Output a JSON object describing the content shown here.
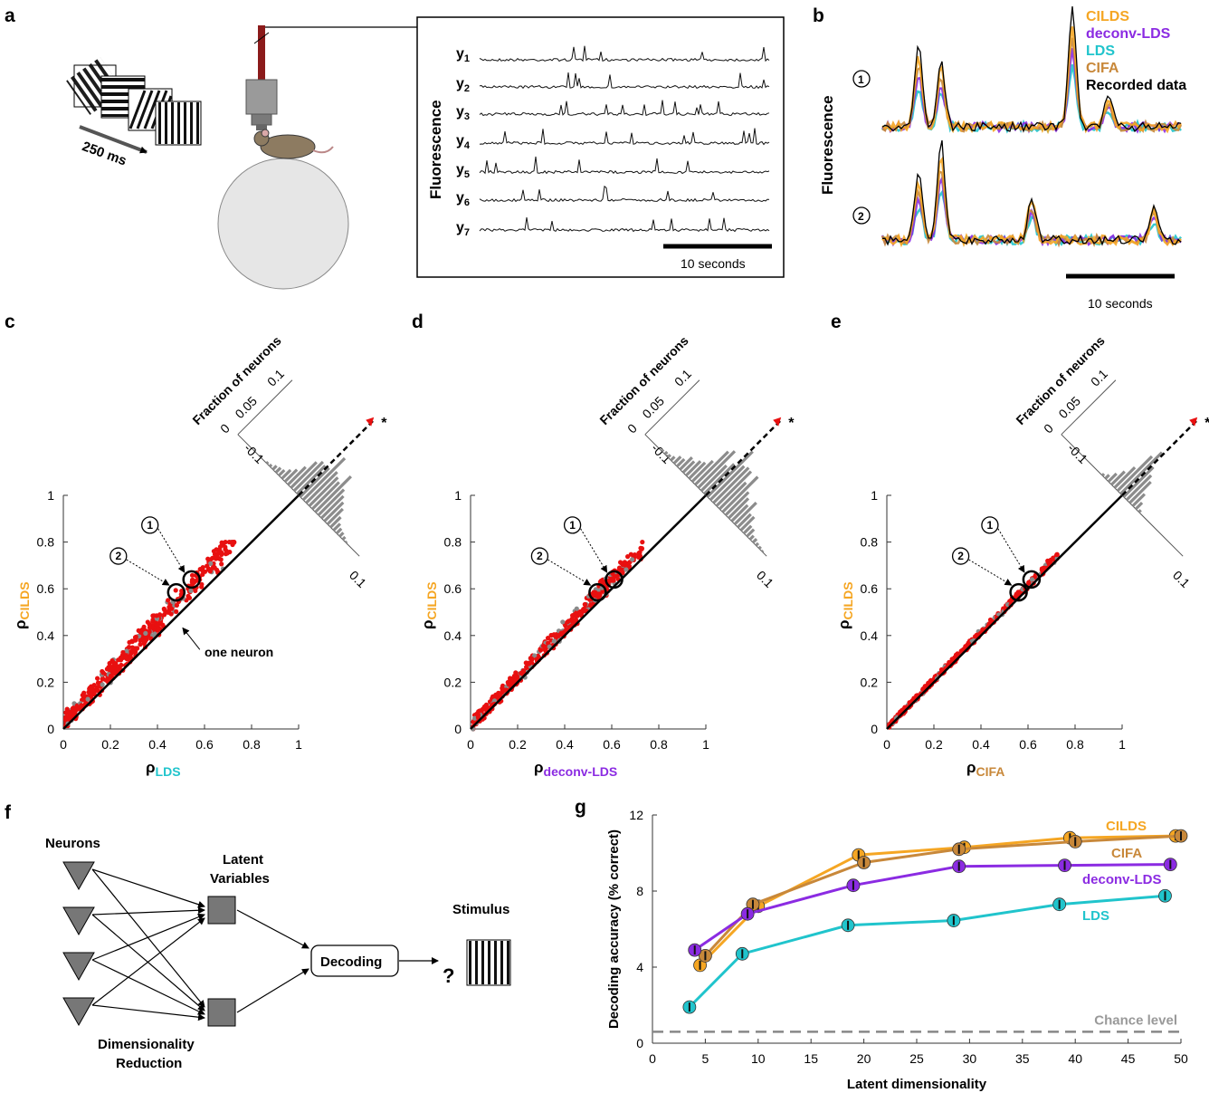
{
  "panels": [
    "a",
    "b",
    "c",
    "d",
    "e",
    "f",
    "g"
  ],
  "colors": {
    "cilds": "#f5a623",
    "deconv_lds": "#8b2be2",
    "lds": "#20c4cc",
    "cifa": "#c8883a",
    "recorded": "#000000",
    "red": "#e81010",
    "gray": "#8a8a8a"
  },
  "panel_a": {
    "time_label": "250 ms",
    "ylabel": "Fluorescence",
    "trace_labels": [
      "y1",
      "y2",
      "y3",
      "y4",
      "y5",
      "y6",
      "y7"
    ],
    "scale_label": "10 seconds"
  },
  "panel_b": {
    "ylabel": "Fluorescence",
    "legend": [
      "CILDS",
      "deconv-LDS",
      "LDS",
      "CIFA",
      "Recorded data"
    ],
    "markers": [
      "①",
      "②"
    ],
    "scale_label": "10 seconds"
  },
  "scatter_c": {
    "ylabel": "ρ",
    "ylabel_sub": "CILDS",
    "xlabel": "ρ",
    "xlabel_sub": "LDS",
    "hist_label": "Fraction of neurons",
    "annotation": "one neuron"
  },
  "scatter_d": {
    "ylabel": "ρ",
    "ylabel_sub": "CILDS",
    "xlabel": "ρ",
    "xlabel_sub": "deconv-LDS",
    "hist_label": "Fraction of neurons"
  },
  "scatter_e": {
    "ylabel": "ρ",
    "ylabel_sub": "CILDS",
    "xlabel": "ρ",
    "xlabel_sub": "CIFA",
    "hist_label": "Fraction of neurons"
  },
  "scatter_ticks": [
    "0",
    "0.2",
    "0.4",
    "0.6",
    "0.8",
    "1"
  ],
  "hist_ticks": {
    "freq": [
      "0",
      "0.05",
      "0.1"
    ],
    "diff_low": "-0.1",
    "diff_high": "0.1",
    "star": "*"
  },
  "panel_f": {
    "neurons": "Neurons",
    "latent_line1": "Latent",
    "latent_line2": "Variables",
    "decoding": "Decoding",
    "stimulus": "Stimulus",
    "question": "?",
    "dimred_line1": "Dimensionality",
    "dimred_line2": "Reduction"
  },
  "chart_data": {
    "type": "line",
    "xlabel": "Latent dimensionality",
    "ylabel": "Decoding accuracy (% correct)",
    "xlim": [
      0,
      50
    ],
    "ylim": [
      0,
      12
    ],
    "xticks": [
      0,
      5,
      10,
      15,
      20,
      25,
      30,
      35,
      40,
      45,
      50
    ],
    "yticks": [
      0,
      4,
      8,
      12
    ],
    "chance_level": 0.6,
    "chance_label": "Chance level",
    "series": [
      {
        "name": "CILDS",
        "color": "#f5a623",
        "x": [
          4.5,
          10,
          19.5,
          29.5,
          39.5,
          49.5
        ],
        "y": [
          4.1,
          7.2,
          9.9,
          10.3,
          10.8,
          10.9
        ]
      },
      {
        "name": "CIFA",
        "color": "#c8883a",
        "x": [
          5,
          9.5,
          20,
          29,
          40,
          50
        ],
        "y": [
          4.6,
          7.3,
          9.5,
          10.2,
          10.6,
          10.9
        ]
      },
      {
        "name": "deconv-LDS",
        "color": "#8b2be2",
        "x": [
          4,
          9,
          19,
          29,
          39,
          49
        ],
        "y": [
          4.9,
          6.8,
          8.3,
          9.3,
          9.35,
          9.4
        ]
      },
      {
        "name": "LDS",
        "color": "#20c4cc",
        "x": [
          3.5,
          8.5,
          18.5,
          28.5,
          38.5,
          48.5
        ],
        "y": [
          1.9,
          4.7,
          6.2,
          6.45,
          7.3,
          7.75
        ]
      }
    ]
  }
}
